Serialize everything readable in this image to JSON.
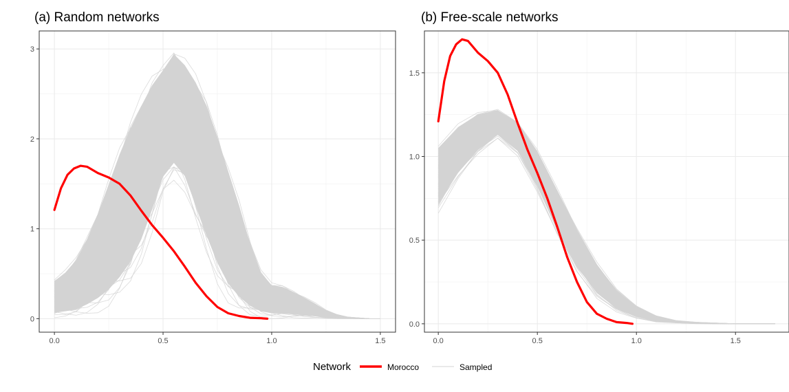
{
  "chart_data": [
    {
      "type": "line",
      "title": "(a) Random networks",
      "xlabel": "",
      "ylabel": "",
      "xlim": [
        -0.07,
        1.57
      ],
      "ylim": [
        -0.15,
        3.2
      ],
      "x_ticks": [
        0.0,
        0.5,
        1.0,
        1.5
      ],
      "x_tick_labels": [
        "0.0",
        "0.5",
        "1.0",
        "1.5"
      ],
      "y_ticks": [
        0,
        1,
        2,
        3
      ],
      "y_tick_labels": [
        "0",
        "1",
        "2",
        "3"
      ],
      "grid": true,
      "series": [
        {
          "name": "Morocco",
          "color": "#ff0000",
          "x": [
            0.0,
            0.03,
            0.06,
            0.09,
            0.12,
            0.15,
            0.2,
            0.25,
            0.3,
            0.35,
            0.4,
            0.45,
            0.5,
            0.55,
            0.6,
            0.65,
            0.7,
            0.75,
            0.8,
            0.85,
            0.9,
            0.95,
            0.98
          ],
          "y": [
            1.21,
            1.45,
            1.6,
            1.67,
            1.7,
            1.69,
            1.62,
            1.57,
            1.5,
            1.37,
            1.2,
            1.04,
            0.9,
            0.75,
            0.58,
            0.4,
            0.25,
            0.13,
            0.06,
            0.03,
            0.01,
            0.005,
            0.0
          ]
        }
      ],
      "sampled_band": {
        "name": "Sampled",
        "color": "#d3d3d3",
        "x": [
          0.0,
          0.05,
          0.1,
          0.15,
          0.2,
          0.25,
          0.3,
          0.35,
          0.4,
          0.45,
          0.5,
          0.55,
          0.6,
          0.65,
          0.7,
          0.75,
          0.8,
          0.85,
          0.9,
          0.95,
          1.0,
          1.05,
          1.1,
          1.15,
          1.2,
          1.25,
          1.3,
          1.35,
          1.4,
          1.45,
          1.5
        ],
        "upper": [
          0.45,
          0.55,
          0.7,
          0.95,
          1.25,
          1.6,
          1.95,
          2.25,
          2.5,
          2.72,
          2.87,
          3.05,
          2.93,
          2.75,
          2.5,
          2.15,
          1.75,
          1.35,
          0.9,
          0.55,
          0.4,
          0.38,
          0.32,
          0.25,
          0.18,
          0.1,
          0.05,
          0.02,
          0.01,
          0.0,
          0.0
        ],
        "lower": [
          0.0,
          0.0,
          0.0,
          0.02,
          0.05,
          0.1,
          0.2,
          0.35,
          0.6,
          0.95,
          1.35,
          1.5,
          1.35,
          1.0,
          0.65,
          0.35,
          0.15,
          0.05,
          0.01,
          0.0,
          0.0,
          0.0,
          0.0,
          0.0,
          0.0,
          0.0,
          0.0,
          0.0,
          0.0,
          0.0,
          0.0
        ]
      }
    },
    {
      "type": "line",
      "title": "(b) Free-scale networks",
      "xlabel": "",
      "ylabel": "",
      "xlim": [
        -0.07,
        1.77
      ],
      "ylim": [
        -0.05,
        1.75
      ],
      "x_ticks": [
        0.0,
        0.5,
        1.0,
        1.5
      ],
      "x_tick_labels": [
        "0.0",
        "0.5",
        "1.0",
        "1.5"
      ],
      "y_ticks": [
        0.0,
        0.5,
        1.0,
        1.5
      ],
      "y_tick_labels": [
        "0.0",
        "0.5",
        "1.0",
        "1.5"
      ],
      "grid": true,
      "series": [
        {
          "name": "Morocco",
          "color": "#ff0000",
          "x": [
            0.0,
            0.03,
            0.06,
            0.09,
            0.12,
            0.15,
            0.2,
            0.25,
            0.3,
            0.35,
            0.4,
            0.45,
            0.5,
            0.55,
            0.6,
            0.65,
            0.7,
            0.75,
            0.8,
            0.85,
            0.9,
            0.95,
            0.98
          ],
          "y": [
            1.21,
            1.45,
            1.6,
            1.67,
            1.7,
            1.69,
            1.62,
            1.57,
            1.5,
            1.37,
            1.2,
            1.04,
            0.9,
            0.75,
            0.58,
            0.4,
            0.25,
            0.13,
            0.06,
            0.03,
            0.01,
            0.005,
            0.0
          ]
        }
      ],
      "sampled_band": {
        "name": "Sampled",
        "color": "#d3d3d3",
        "x": [
          0.0,
          0.1,
          0.2,
          0.3,
          0.4,
          0.5,
          0.6,
          0.7,
          0.8,
          0.9,
          1.0,
          1.1,
          1.2,
          1.3,
          1.4,
          1.5,
          1.6,
          1.7
        ],
        "upper": [
          1.08,
          1.2,
          1.27,
          1.29,
          1.22,
          1.05,
          0.82,
          0.58,
          0.37,
          0.21,
          0.11,
          0.05,
          0.02,
          0.01,
          0.005,
          0.0,
          0.0,
          0.0
        ],
        "lower": [
          0.65,
          0.85,
          1.0,
          1.1,
          1.0,
          0.78,
          0.52,
          0.3,
          0.15,
          0.07,
          0.03,
          0.01,
          0.005,
          0.0,
          0.0,
          0.0,
          0.0,
          0.0
        ]
      }
    }
  ],
  "legend": {
    "title": "Network",
    "entries": [
      {
        "label": "Morocco",
        "color": "#ff0000"
      },
      {
        "label": "Sampled",
        "color": "#d3d3d3"
      }
    ]
  }
}
